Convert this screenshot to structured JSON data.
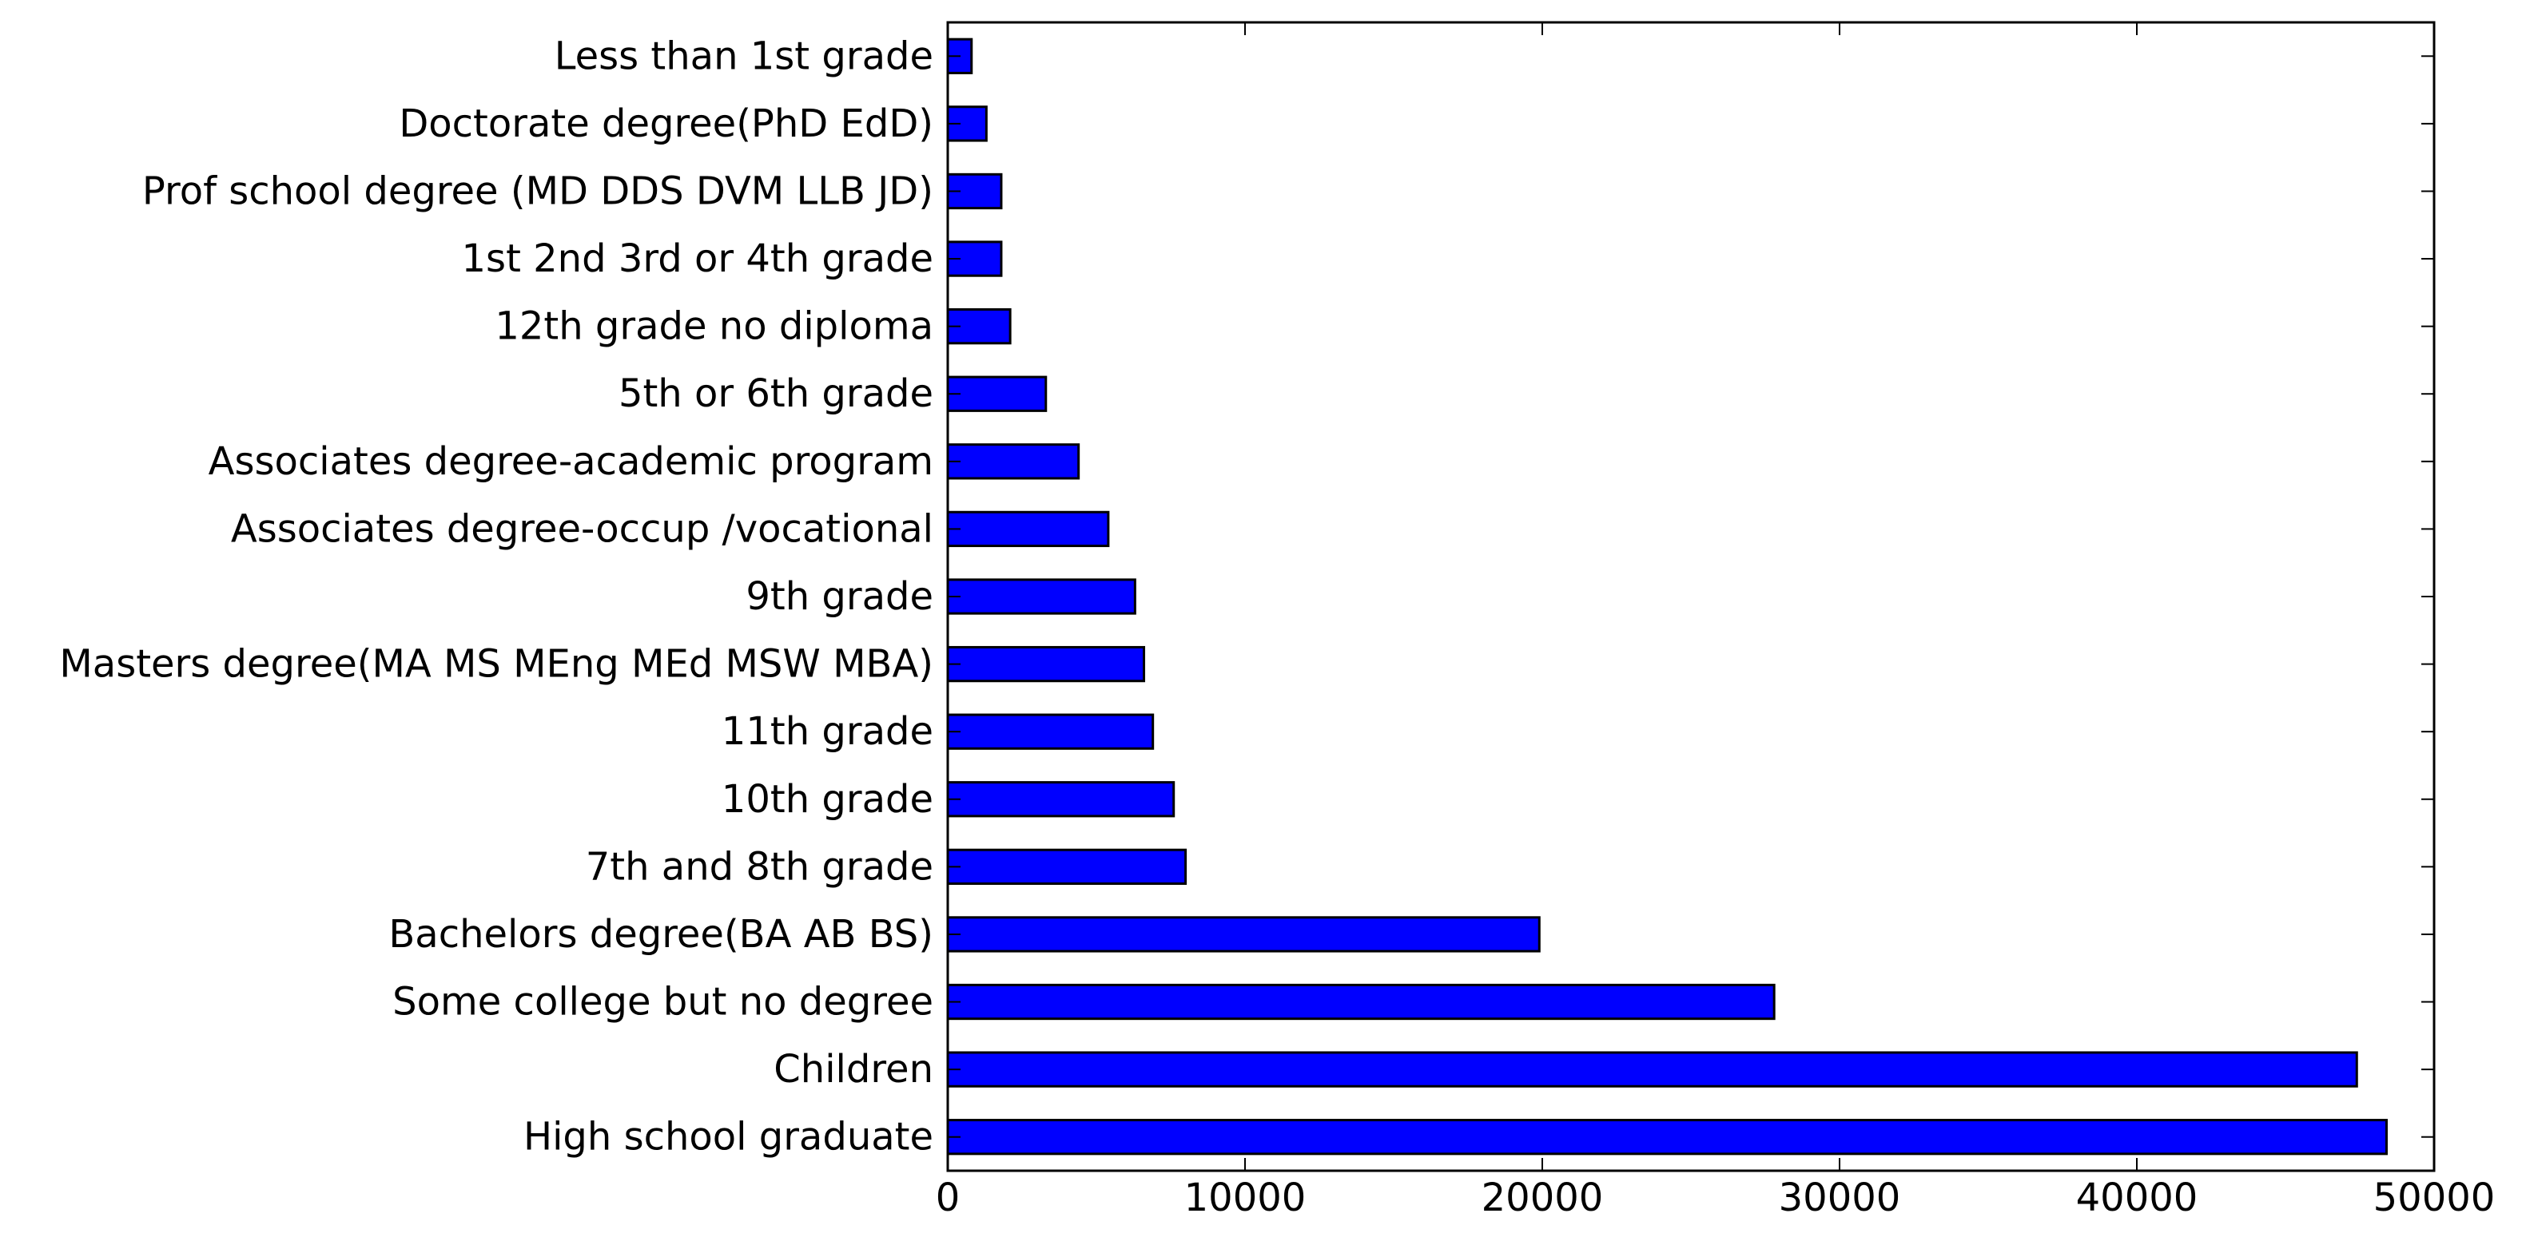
{
  "chart_data": {
    "type": "bar",
    "orientation": "horizontal",
    "categories": [
      "High school graduate",
      "Children",
      "Some college but no degree",
      "Bachelors degree(BA AB BS)",
      "7th and 8th grade",
      "10th grade",
      "11th grade",
      "Masters degree(MA MS MEng MEd MSW MBA)",
      "9th grade",
      "Associates degree-occup /vocational",
      "Associates degree-academic program",
      "5th or 6th grade",
      "12th grade no diploma",
      "1st 2nd 3rd or 4th grade",
      "Prof school degree (MD DDS DVM LLB JD)",
      "Doctorate degree(PhD EdD)",
      "Less than 1st grade"
    ],
    "values": [
      48400,
      47400,
      27800,
      19900,
      8000,
      7600,
      6900,
      6600,
      6300,
      5400,
      4400,
      3300,
      2100,
      1800,
      1800,
      1300,
      800
    ],
    "xlim": [
      0,
      50000
    ],
    "xticks": [
      "0",
      "10000",
      "20000",
      "30000",
      "40000",
      "50000"
    ],
    "xtick_values": [
      0,
      10000,
      20000,
      30000,
      40000,
      50000
    ],
    "title": "",
    "xlabel": "",
    "ylabel": "",
    "bar_color": "#0000ff",
    "grid": false,
    "legend": "none"
  }
}
